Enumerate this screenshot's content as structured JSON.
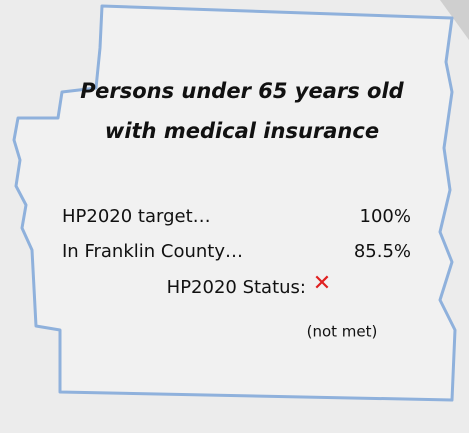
{
  "title": [
    "Persons under 65 years old",
    "with medical insurance"
  ],
  "rows": [
    {
      "label": "HP2020 target…",
      "value": "100%"
    },
    {
      "label": "In Franklin County…",
      "value": "85.5%"
    }
  ],
  "status": {
    "label": "HP2020 Status:",
    "icon": "✕",
    "note": "(not met)"
  }
}
